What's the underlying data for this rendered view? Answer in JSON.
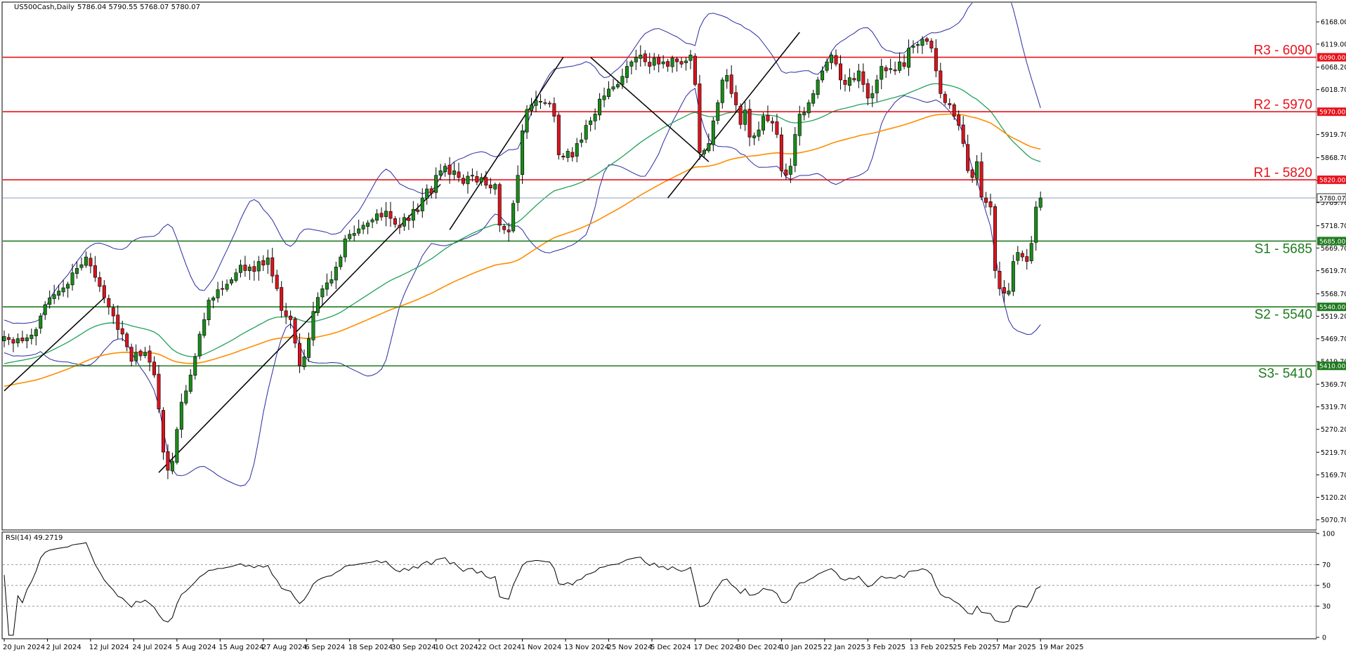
{
  "header": {
    "symbol": "US500Cash,Daily",
    "ohlc": "5786.04 5790.55 5768.07 5780.07"
  },
  "rsi_header": "RSI(14) 49.2719",
  "colors": {
    "bull": "#1a8a1a",
    "bear": "#d8141e",
    "resistance": "#e8121b",
    "support": "#1e7a1e",
    "bollinger": "#2a2aa0",
    "ma_green": "#23a15a",
    "ma_orange": "#ff8c00",
    "rsi": "#000000",
    "trend": "#000000"
  },
  "chart_data": [
    {
      "type": "candlestick",
      "title": "",
      "ylim": [
        5050,
        6210
      ],
      "y_ticks": [
        "6168.00",
        "6119.00",
        "6068.20",
        "6018.70",
        "5969.70",
        "5919.70",
        "5868.70",
        "5818.70",
        "5769.70",
        "5718.70",
        "5669.70",
        "5619.70",
        "5568.70",
        "5519.20",
        "5469.70",
        "5419.70",
        "5369.70",
        "5319.70",
        "5270.20",
        "5219.70",
        "5169.70",
        "5120.20",
        "5070.70"
      ],
      "x_ticks": [
        "20 Jun 2024",
        "2 Jul 2024",
        "12 Jul 2024",
        "24 Jul 2024",
        "5 Aug 2024",
        "15 Aug 2024",
        "27 Aug 2024",
        "6 Sep 2024",
        "18 Sep 2024",
        "30 Sep 2024",
        "10 Oct 2024",
        "22 Oct 2024",
        "1 Nov 2024",
        "13 Nov 2024",
        "25 Nov 2024",
        "5 Dec 2024",
        "17 Dec 2024",
        "30 Dec 2024",
        "10 Jan 2025",
        "22 Jan 2025",
        "3 Feb 2025",
        "13 Feb 2025",
        "25 Feb 2025",
        "7 Mar 2025",
        "19 Mar 2025"
      ],
      "last_price": {
        "value": 5780.07,
        "label": "5780.07"
      },
      "levels": [
        {
          "name": "R3",
          "label": "R3 - 6090",
          "value": 6090,
          "tag": "6090.00",
          "kind": "resistance"
        },
        {
          "name": "R2",
          "label": "R2 - 5970",
          "value": 5970,
          "tag": "5970.00",
          "kind": "resistance"
        },
        {
          "name": "R1",
          "label": "R1 - 5820",
          "value": 5820,
          "tag": "5820.00",
          "kind": "resistance"
        },
        {
          "name": "S1",
          "label": "S1 - 5685",
          "value": 5685,
          "tag": "5685.00",
          "kind": "support"
        },
        {
          "name": "S2",
          "label": "S2 - 5540",
          "value": 5540,
          "tag": "5540.00",
          "kind": "support"
        },
        {
          "name": "S3",
          "label": "S3- 5410",
          "value": 5410,
          "tag": "5410.00",
          "kind": "support"
        }
      ],
      "closes": [
        5475,
        5468,
        5460,
        5470,
        5465,
        5472,
        5478,
        5490,
        5520,
        5545,
        5560,
        5567,
        5575,
        5582,
        5590,
        5615,
        5625,
        5633,
        5650,
        5630,
        5605,
        5585,
        5560,
        5540,
        5520,
        5490,
        5480,
        5452,
        5420,
        5440,
        5432,
        5440,
        5418,
        5390,
        5315,
        5220,
        5180,
        5200,
        5270,
        5330,
        5355,
        5390,
        5430,
        5480,
        5512,
        5555,
        5560,
        5578,
        5580,
        5590,
        5600,
        5615,
        5632,
        5620,
        5628,
        5618,
        5640,
        5632,
        5648,
        5608,
        5580,
        5532,
        5520,
        5512,
        5460,
        5410,
        5430,
        5470,
        5530,
        5561,
        5580,
        5593,
        5600,
        5628,
        5650,
        5690,
        5700,
        5702,
        5712,
        5720,
        5725,
        5732,
        5745,
        5738,
        5751,
        5735,
        5722,
        5715,
        5737,
        5730,
        5755,
        5750,
        5780,
        5800,
        5790,
        5830,
        5840,
        5850,
        5832,
        5840,
        5825,
        5812,
        5828,
        5830,
        5815,
        5825,
        5808,
        5802,
        5810,
        5720,
        5710,
        5705,
        5768,
        5830,
        5928,
        5975,
        5985,
        5995,
        5993,
        5990,
        5988,
        5960,
        5875,
        5870,
        5883,
        5870,
        5900,
        5908,
        5940,
        5950,
        5965,
        5998,
        6005,
        6020,
        6025,
        6030,
        6048,
        6070,
        6080,
        6090,
        6095,
        6080,
        6070,
        6088,
        6075,
        6080,
        6070,
        6088,
        6080,
        6075,
        6082,
        6095,
        6030,
        5880,
        5885,
        5900,
        5950,
        5990,
        6040,
        6050,
        6010,
        5985,
        5942,
        5974,
        5914,
        5917,
        5930,
        5960,
        5950,
        5945,
        5920,
        5840,
        5830,
        5850,
        5920,
        5965,
        5968,
        5990,
        6010,
        6040,
        6060,
        6080,
        6095,
        6075,
        6040,
        6030,
        6045,
        6040,
        6060,
        6030,
        6000,
        6010,
        6040,
        6070,
        6060,
        6065,
        6060,
        6080,
        6070,
        6110,
        6115,
        6118,
        6130,
        6125,
        6110,
        6060,
        6010,
        5990,
        5985,
        5960,
        5940,
        5900,
        5840,
        5825,
        5860,
        5782,
        5770,
        5760,
        5620,
        5580,
        5570,
        5575,
        5640,
        5660,
        5650,
        5640,
        5680,
        5760,
        5780
      ]
    },
    {
      "type": "line",
      "title": "",
      "ylim": [
        0,
        100
      ],
      "y_ticks": [
        "100",
        "70",
        "50",
        "30",
        "0"
      ],
      "levels": [
        70,
        50,
        30
      ]
    }
  ]
}
